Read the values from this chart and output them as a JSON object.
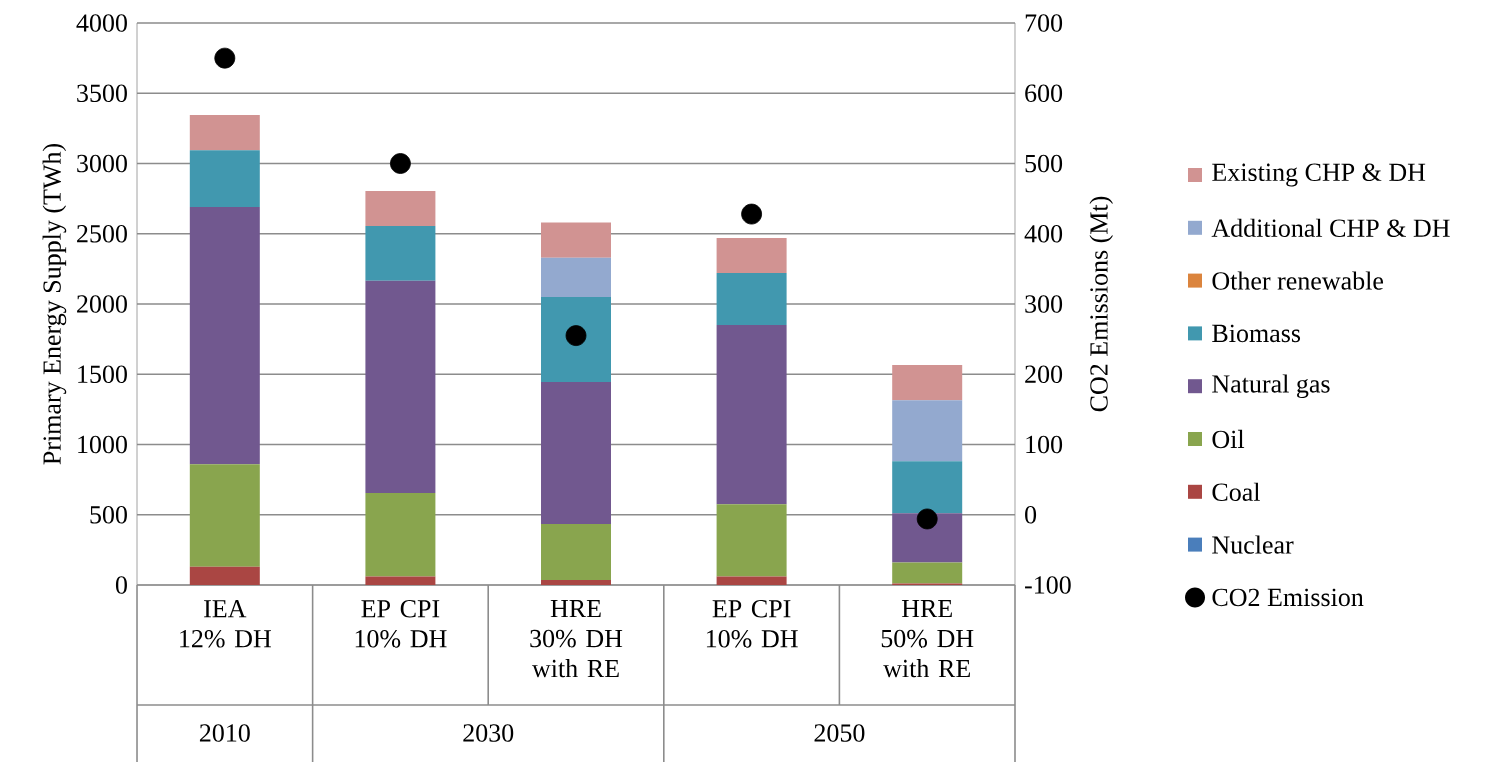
{
  "chart_data": {
    "type": "bar",
    "stacked": true,
    "categories": [
      "IEA 12% DH",
      "EP CPI 10% DH",
      "HRE 30% DH with RE",
      "EP CPI 10% DH",
      "HRE 50% DH with RE"
    ],
    "ylabel": "Primary Energy Supply (TWh)",
    "y2label": "CO2 Emissions (Mt)",
    "ylim": [
      0,
      4000
    ],
    "yticks": [
      0,
      500,
      1000,
      1500,
      2000,
      2500,
      3000,
      3500,
      4000
    ],
    "y2lim": [
      -100,
      700
    ],
    "y2ticks": [
      -100,
      0,
      100,
      200,
      300,
      400,
      500,
      600,
      700
    ],
    "grid": "y",
    "legend": "right",
    "annotations": [
      "2010",
      "2030",
      "2050"
    ],
    "series": [
      {
        "name": "Nuclear",
        "color": "#4a7ebb",
        "values": [
          0,
          0,
          0,
          0,
          0
        ]
      },
      {
        "name": "Coal",
        "color": "#aa4643",
        "values": [
          130,
          60,
          35,
          60,
          10
        ]
      },
      {
        "name": "Oil",
        "color": "#89a54e",
        "values": [
          730,
          595,
          400,
          515,
          150
        ]
      },
      {
        "name": "Natural gas",
        "color": "#71588f",
        "values": [
          1830,
          1510,
          1010,
          1275,
          350
        ]
      },
      {
        "name": "Biomass",
        "color": "#4198af",
        "values": [
          405,
          390,
          605,
          370,
          370
        ]
      },
      {
        "name": "Other renewable",
        "color": "#db843d",
        "values": [
          0,
          0,
          0,
          0,
          0
        ]
      },
      {
        "name": "Additional CHP & DH",
        "color": "#93a9cf",
        "values": [
          0,
          0,
          280,
          0,
          435
        ]
      },
      {
        "name": "Existing CHP & DH",
        "color": "#d19392",
        "values": [
          250,
          250,
          250,
          250,
          250
        ]
      },
      {
        "name": "CO2 Emission",
        "type": "scatter",
        "axis": "y2",
        "marker": "circle",
        "color": "#000000",
        "values": [
          650,
          500,
          255,
          428,
          -6
        ]
      }
    ]
  }
}
